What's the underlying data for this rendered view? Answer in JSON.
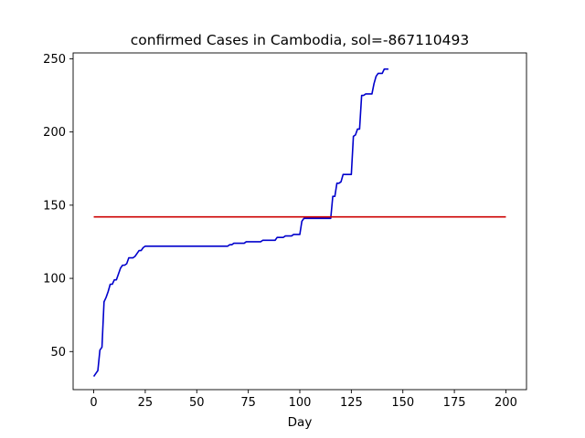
{
  "chart_data": {
    "type": "line",
    "title": "confirmed Cases in Cambodia, sol=-867110493",
    "xlabel": "Day",
    "ylabel": "",
    "xlim": [
      -10,
      210
    ],
    "ylim": [
      24,
      254
    ],
    "xticks": [
      0,
      25,
      50,
      75,
      100,
      125,
      150,
      175,
      200
    ],
    "yticks": [
      50,
      100,
      150,
      200,
      250
    ],
    "grid": false,
    "series": [
      {
        "color": "#0000cc",
        "x": [
          0,
          1,
          2,
          3,
          4,
          5,
          6,
          7,
          8,
          9,
          10,
          11,
          12,
          13,
          14,
          15,
          16,
          17,
          18,
          19,
          20,
          21,
          22,
          23,
          24,
          25,
          26,
          27,
          28,
          65,
          66,
          67,
          68,
          69,
          70,
          71,
          72,
          73,
          74,
          75,
          76,
          77,
          78,
          79,
          80,
          81,
          82,
          83,
          84,
          85,
          86,
          87,
          88,
          89,
          90,
          91,
          92,
          93,
          94,
          95,
          96,
          97,
          98,
          99,
          100,
          101,
          102,
          103,
          104,
          114,
          115,
          116,
          117,
          118,
          119,
          120,
          121,
          122,
          123,
          124,
          125,
          126,
          127,
          128,
          129,
          130,
          131,
          132,
          133,
          134,
          135,
          136,
          137,
          138,
          139,
          140,
          141,
          142,
          143
        ],
        "y": [
          33,
          35,
          37,
          51,
          53,
          84,
          87,
          91,
          96,
          96,
          99,
          99,
          103,
          107,
          109,
          109,
          110,
          114,
          114,
          114,
          115,
          117,
          119,
          119,
          121,
          122,
          122,
          122,
          122,
          122,
          123,
          123,
          124,
          124,
          124,
          124,
          124,
          124,
          125,
          125,
          125,
          125,
          125,
          125,
          125,
          125,
          126,
          126,
          126,
          126,
          126,
          126,
          126,
          128,
          128,
          128,
          128,
          129,
          129,
          129,
          129,
          130,
          130,
          130,
          130,
          139,
          141,
          141,
          141,
          141,
          141,
          156,
          156,
          165,
          165,
          166,
          171,
          171,
          171,
          171,
          171,
          197,
          198,
          202,
          202,
          225,
          225,
          226,
          226,
          226,
          226,
          233,
          238,
          240,
          240,
          240,
          243,
          243,
          243
        ]
      },
      {
        "color": "#cc0000",
        "x": [
          0,
          200
        ],
        "y": [
          142,
          142
        ]
      }
    ]
  }
}
